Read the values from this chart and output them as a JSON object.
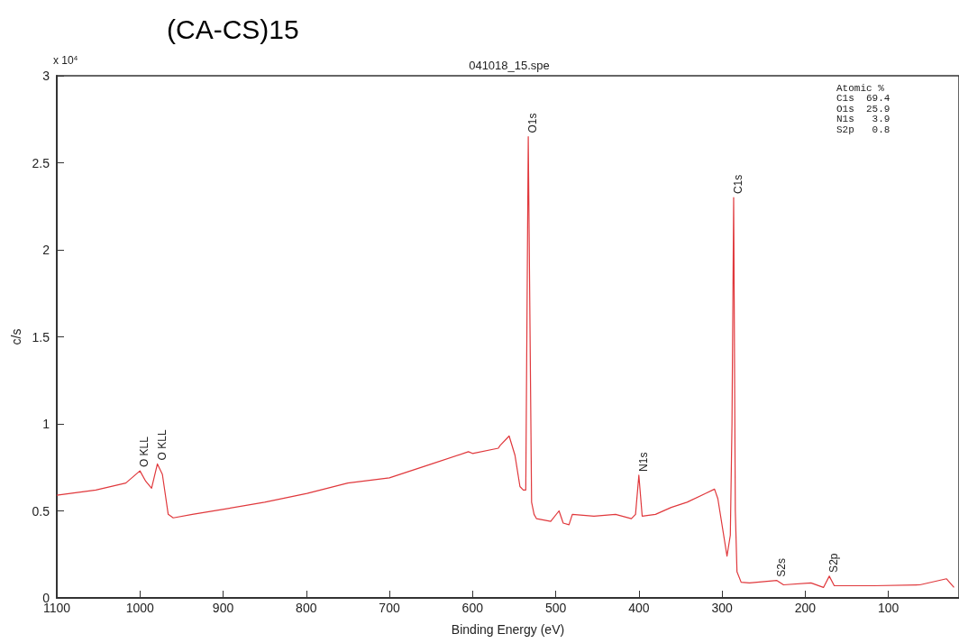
{
  "chart_data": {
    "type": "line",
    "title": "(CA-CS)15",
    "subtitle": "041018_15.spe",
    "xlabel": "Binding Energy (eV)",
    "ylabel": "c/s",
    "xlim": [
      1100,
      15
    ],
    "xticks": [
      1100,
      1000,
      900,
      800,
      700,
      600,
      500,
      400,
      300,
      200,
      100
    ],
    "ylim": [
      0,
      3
    ],
    "yticks": [
      0,
      0.5,
      1,
      1.5,
      2,
      2.5,
      3
    ],
    "grid": false,
    "marker": "none",
    "line_style": "solid",
    "series": [
      {
        "color": "#e0383c",
        "x": [
          1100,
          1053,
          1017,
          1000,
          993,
          986,
          979,
          973,
          966,
          960,
          937,
          899,
          850,
          799,
          750,
          700,
          649,
          605,
          600,
          569,
          567,
          556,
          549,
          543,
          539,
          536,
          533,
          529,
          526,
          523,
          506,
          496,
          491,
          484,
          480,
          454,
          428,
          409,
          404,
          400,
          396,
          380,
          361,
          342,
          320,
          309,
          305,
          294,
          290,
          288,
          286,
          284,
          282,
          277,
          267,
          234,
          226,
          193,
          178,
          171,
          165,
          118,
          62,
          30,
          21
        ],
        "values": [
          0.59,
          0.62,
          0.66,
          0.73,
          0.67,
          0.63,
          0.77,
          0.71,
          0.48,
          0.46,
          0.48,
          0.51,
          0.55,
          0.6,
          0.66,
          0.69,
          0.77,
          0.84,
          0.83,
          0.86,
          0.875,
          0.93,
          0.82,
          0.64,
          0.62,
          0.62,
          2.65,
          0.55,
          0.48,
          0.455,
          0.44,
          0.5,
          0.43,
          0.42,
          0.48,
          0.47,
          0.48,
          0.455,
          0.48,
          0.705,
          0.47,
          0.48,
          0.52,
          0.55,
          0.6,
          0.625,
          0.57,
          0.24,
          0.36,
          1.0,
          2.3,
          0.5,
          0.15,
          0.09,
          0.086,
          0.1,
          0.075,
          0.086,
          0.06,
          0.125,
          0.07,
          0.07,
          0.075,
          0.11,
          0.06
        ]
      }
    ],
    "annotations": [
      "x 10$^{4}$",
      "Atomic %",
      "C1s  69.4",
      "O1s  25.9",
      "N1s   3.9",
      "S2p   0.8",
      {
        "text": "O KLL",
        "x": 1000,
        "y": 0.73
      },
      {
        "text": "O KLL",
        "x": 979,
        "y": 0.77
      },
      {
        "text": "O1s",
        "x": 533,
        "y": 2.65
      },
      {
        "text": "N1s",
        "x": 400,
        "y": 0.705
      },
      {
        "text": "C1s",
        "x": 286,
        "y": 2.3
      },
      {
        "text": "S2s",
        "x": 234,
        "y": 0.1
      },
      {
        "text": "S2p",
        "x": 171,
        "y": 0.125
      }
    ]
  }
}
